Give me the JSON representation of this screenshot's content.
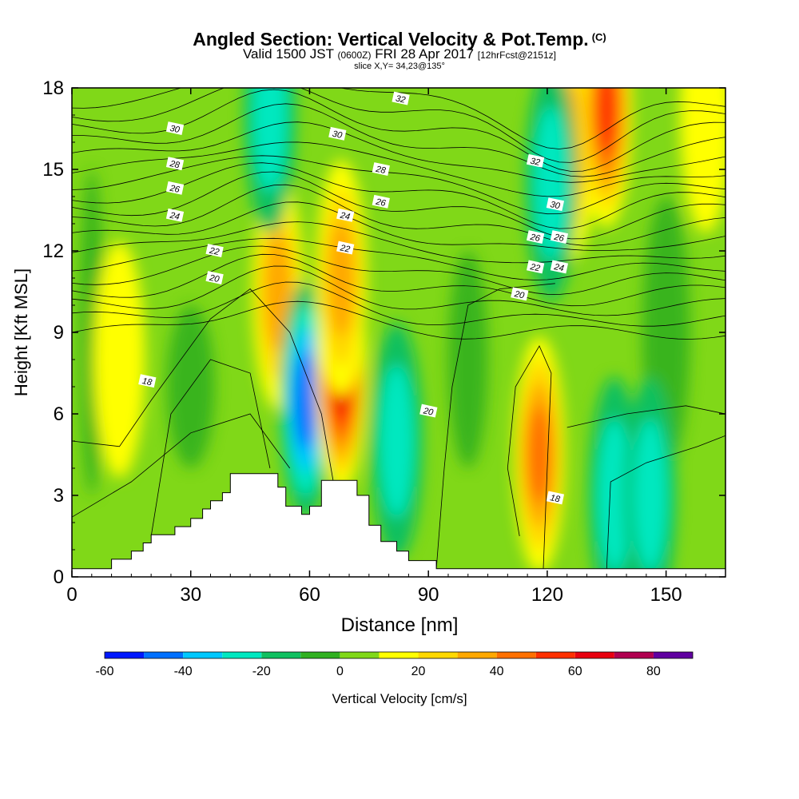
{
  "header": {
    "title": "Angled Section: Vertical Velocity & Pot.Temp.",
    "copyright": "(C)",
    "valid_prefix": "Valid 1500 JST",
    "valid_z": "(0600Z)",
    "valid_date": "FRI 28 Apr 2017",
    "forecast": "[12hrFcst@2151z]",
    "slice": "slice X,Y= 34,23@135°"
  },
  "chart_data": {
    "type": "heatmap",
    "title": "Angled Section: Vertical Velocity & Pot.Temp.",
    "xlabel": "Distance [nm]",
    "ylabel": "Height [Kft MSL]",
    "xlim": [
      0,
      165
    ],
    "ylim": [
      0,
      18
    ],
    "xticks": [
      0,
      30,
      60,
      90,
      120,
      150
    ],
    "yticks": [
      0,
      3,
      6,
      9,
      12,
      15,
      18
    ],
    "colorbar": {
      "label": "Vertical Velocity [cm/s]",
      "tick_labels": [
        "-60",
        "-40",
        "-20",
        "0",
        "20",
        "40",
        "60",
        "80"
      ],
      "tick_values": [
        -60,
        -40,
        -20,
        0,
        20,
        40,
        60,
        80
      ],
      "bounds": [
        -60,
        -50,
        -40,
        -30,
        -20,
        -10,
        0,
        10,
        20,
        30,
        40,
        50,
        60,
        70,
        80,
        90
      ],
      "colors": [
        "#0018ff",
        "#0070ff",
        "#00c8ff",
        "#00e8c0",
        "#10c060",
        "#30b020",
        "#80d818",
        "#ffff00",
        "#ffd800",
        "#ffa800",
        "#ff7000",
        "#ff3000",
        "#e80010",
        "#b00050",
        "#6000a0"
      ]
    },
    "velocity_cells": [
      {
        "x": 12,
        "y": 8,
        "v": 18
      },
      {
        "x": 52,
        "y": 10.5,
        "v": 38
      },
      {
        "x": 59,
        "y": 6.5,
        "v": -48
      },
      {
        "x": 68,
        "y": 7.5,
        "v": 62
      },
      {
        "x": 68,
        "y": 11,
        "v": 30
      },
      {
        "x": 82,
        "y": 5,
        "v": -24
      },
      {
        "x": 118,
        "y": 4.5,
        "v": 42
      },
      {
        "x": 126,
        "y": 16,
        "v": 34
      },
      {
        "x": 135,
        "y": 17.2,
        "v": 56
      },
      {
        "x": 121,
        "y": 14.5,
        "v": -26
      },
      {
        "x": 50,
        "y": 17,
        "v": -24
      },
      {
        "x": 137,
        "y": 3,
        "v": -22
      },
      {
        "x": 146,
        "y": 3,
        "v": -26
      },
      {
        "x": 160,
        "y": 17,
        "v": 14
      }
    ],
    "contour_labels": [
      {
        "text": "32",
        "x": 83,
        "y": 17.6
      },
      {
        "text": "30",
        "x": 26,
        "y": 16.5
      },
      {
        "text": "30",
        "x": 67,
        "y": 16.3
      },
      {
        "text": "32",
        "x": 117,
        "y": 15.3
      },
      {
        "text": "28",
        "x": 26,
        "y": 15.2
      },
      {
        "text": "28",
        "x": 78,
        "y": 15
      },
      {
        "text": "26",
        "x": 26,
        "y": 14.3
      },
      {
        "text": "26",
        "x": 78,
        "y": 13.8
      },
      {
        "text": "30",
        "x": 122,
        "y": 13.7
      },
      {
        "text": "24",
        "x": 26,
        "y": 13.3
      },
      {
        "text": "24",
        "x": 69,
        "y": 13.3
      },
      {
        "text": "26",
        "x": 117,
        "y": 12.5
      },
      {
        "text": "26",
        "x": 123,
        "y": 12.5
      },
      {
        "text": "22",
        "x": 36,
        "y": 12
      },
      {
        "text": "22",
        "x": 69,
        "y": 12.1
      },
      {
        "text": "22",
        "x": 117,
        "y": 11.4
      },
      {
        "text": "24",
        "x": 123,
        "y": 11.4
      },
      {
        "text": "20",
        "x": 36,
        "y": 11
      },
      {
        "text": "20",
        "x": 113,
        "y": 10.4
      },
      {
        "text": "18",
        "x": 19,
        "y": 7.2
      },
      {
        "text": "20",
        "x": 90,
        "y": 6.1
      },
      {
        "text": "18",
        "x": 122,
        "y": 2.9
      }
    ],
    "terrain": [
      [
        0,
        0.3
      ],
      [
        10,
        0.3
      ],
      [
        10,
        0.65
      ],
      [
        15,
        0.65
      ],
      [
        15,
        0.95
      ],
      [
        18,
        0.95
      ],
      [
        18,
        1.25
      ],
      [
        20,
        1.25
      ],
      [
        20,
        1.55
      ],
      [
        26,
        1.55
      ],
      [
        26,
        1.85
      ],
      [
        30,
        1.85
      ],
      [
        30,
        2.15
      ],
      [
        33,
        2.15
      ],
      [
        33,
        2.5
      ],
      [
        35,
        2.5
      ],
      [
        35,
        2.8
      ],
      [
        38,
        2.8
      ],
      [
        38,
        3.1
      ],
      [
        40,
        3.1
      ],
      [
        40,
        3.8
      ],
      [
        52,
        3.8
      ],
      [
        52,
        3.3
      ],
      [
        54,
        3.3
      ],
      [
        54,
        2.6
      ],
      [
        58,
        2.6
      ],
      [
        58,
        2.3
      ],
      [
        60,
        2.3
      ],
      [
        60,
        2.6
      ],
      [
        63,
        2.6
      ],
      [
        63,
        3.55
      ],
      [
        72,
        3.55
      ],
      [
        72,
        3.0
      ],
      [
        75,
        3.0
      ],
      [
        75,
        1.9
      ],
      [
        78,
        1.9
      ],
      [
        78,
        1.3
      ],
      [
        82,
        1.3
      ],
      [
        82,
        0.95
      ],
      [
        85,
        0.95
      ],
      [
        85,
        0.6
      ],
      [
        92,
        0.6
      ],
      [
        92,
        0.3
      ],
      [
        165,
        0.3
      ]
    ]
  }
}
